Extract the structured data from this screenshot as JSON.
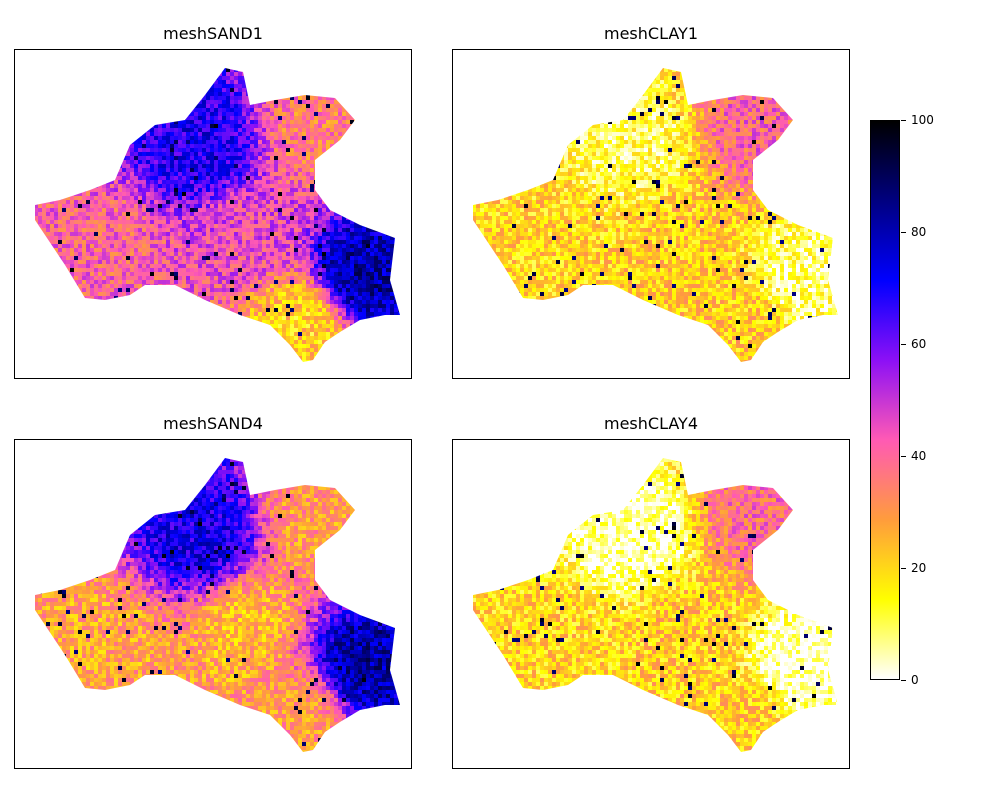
{
  "chart_data": [
    {
      "type": "heatmap",
      "title": "meshSAND1",
      "value_range": [
        0,
        100
      ],
      "dominant_hue": "purple-blue",
      "regions": [
        {
          "zone": "north",
          "value": 70
        },
        {
          "zone": "northeast",
          "value": 35
        },
        {
          "zone": "center",
          "value": 45
        },
        {
          "zone": "southwest",
          "value": 40
        },
        {
          "zone": "east",
          "value": 82
        },
        {
          "zone": "south",
          "value": 20
        }
      ]
    },
    {
      "type": "heatmap",
      "title": "meshCLAY1",
      "value_range": [
        0,
        100
      ],
      "dominant_hue": "orange-yellow",
      "regions": [
        {
          "zone": "north",
          "value": 10
        },
        {
          "zone": "northeast",
          "value": 40
        },
        {
          "zone": "center",
          "value": 22
        },
        {
          "zone": "southwest",
          "value": 20
        },
        {
          "zone": "east",
          "value": 8
        },
        {
          "zone": "south",
          "value": 22
        }
      ]
    },
    {
      "type": "heatmap",
      "title": "meshSAND4",
      "value_range": [
        0,
        100
      ],
      "dominant_hue": "purple-orange",
      "regions": [
        {
          "zone": "north",
          "value": 72
        },
        {
          "zone": "northeast",
          "value": 30
        },
        {
          "zone": "center",
          "value": 25
        },
        {
          "zone": "southwest",
          "value": 28
        },
        {
          "zone": "east",
          "value": 82
        },
        {
          "zone": "south",
          "value": 30
        }
      ]
    },
    {
      "type": "heatmap",
      "title": "meshCLAY4",
      "value_range": [
        0,
        100
      ],
      "dominant_hue": "orange-white",
      "regions": [
        {
          "zone": "north",
          "value": 3
        },
        {
          "zone": "northeast",
          "value": 38
        },
        {
          "zone": "center",
          "value": 22
        },
        {
          "zone": "southwest",
          "value": 20
        },
        {
          "zone": "east",
          "value": 2
        },
        {
          "zone": "south",
          "value": 22
        }
      ]
    }
  ],
  "colorbar": {
    "min": 0,
    "max": 100,
    "ticks": [
      "0",
      "20",
      "40",
      "60",
      "80",
      "100"
    ],
    "colormap": "gnuplot2_r",
    "stops": [
      "#ffffff",
      "#ffff00",
      "#ff9c3c",
      "#ff5ab4",
      "#8c10f6",
      "#0000ff",
      "#000080",
      "#000000"
    ]
  }
}
